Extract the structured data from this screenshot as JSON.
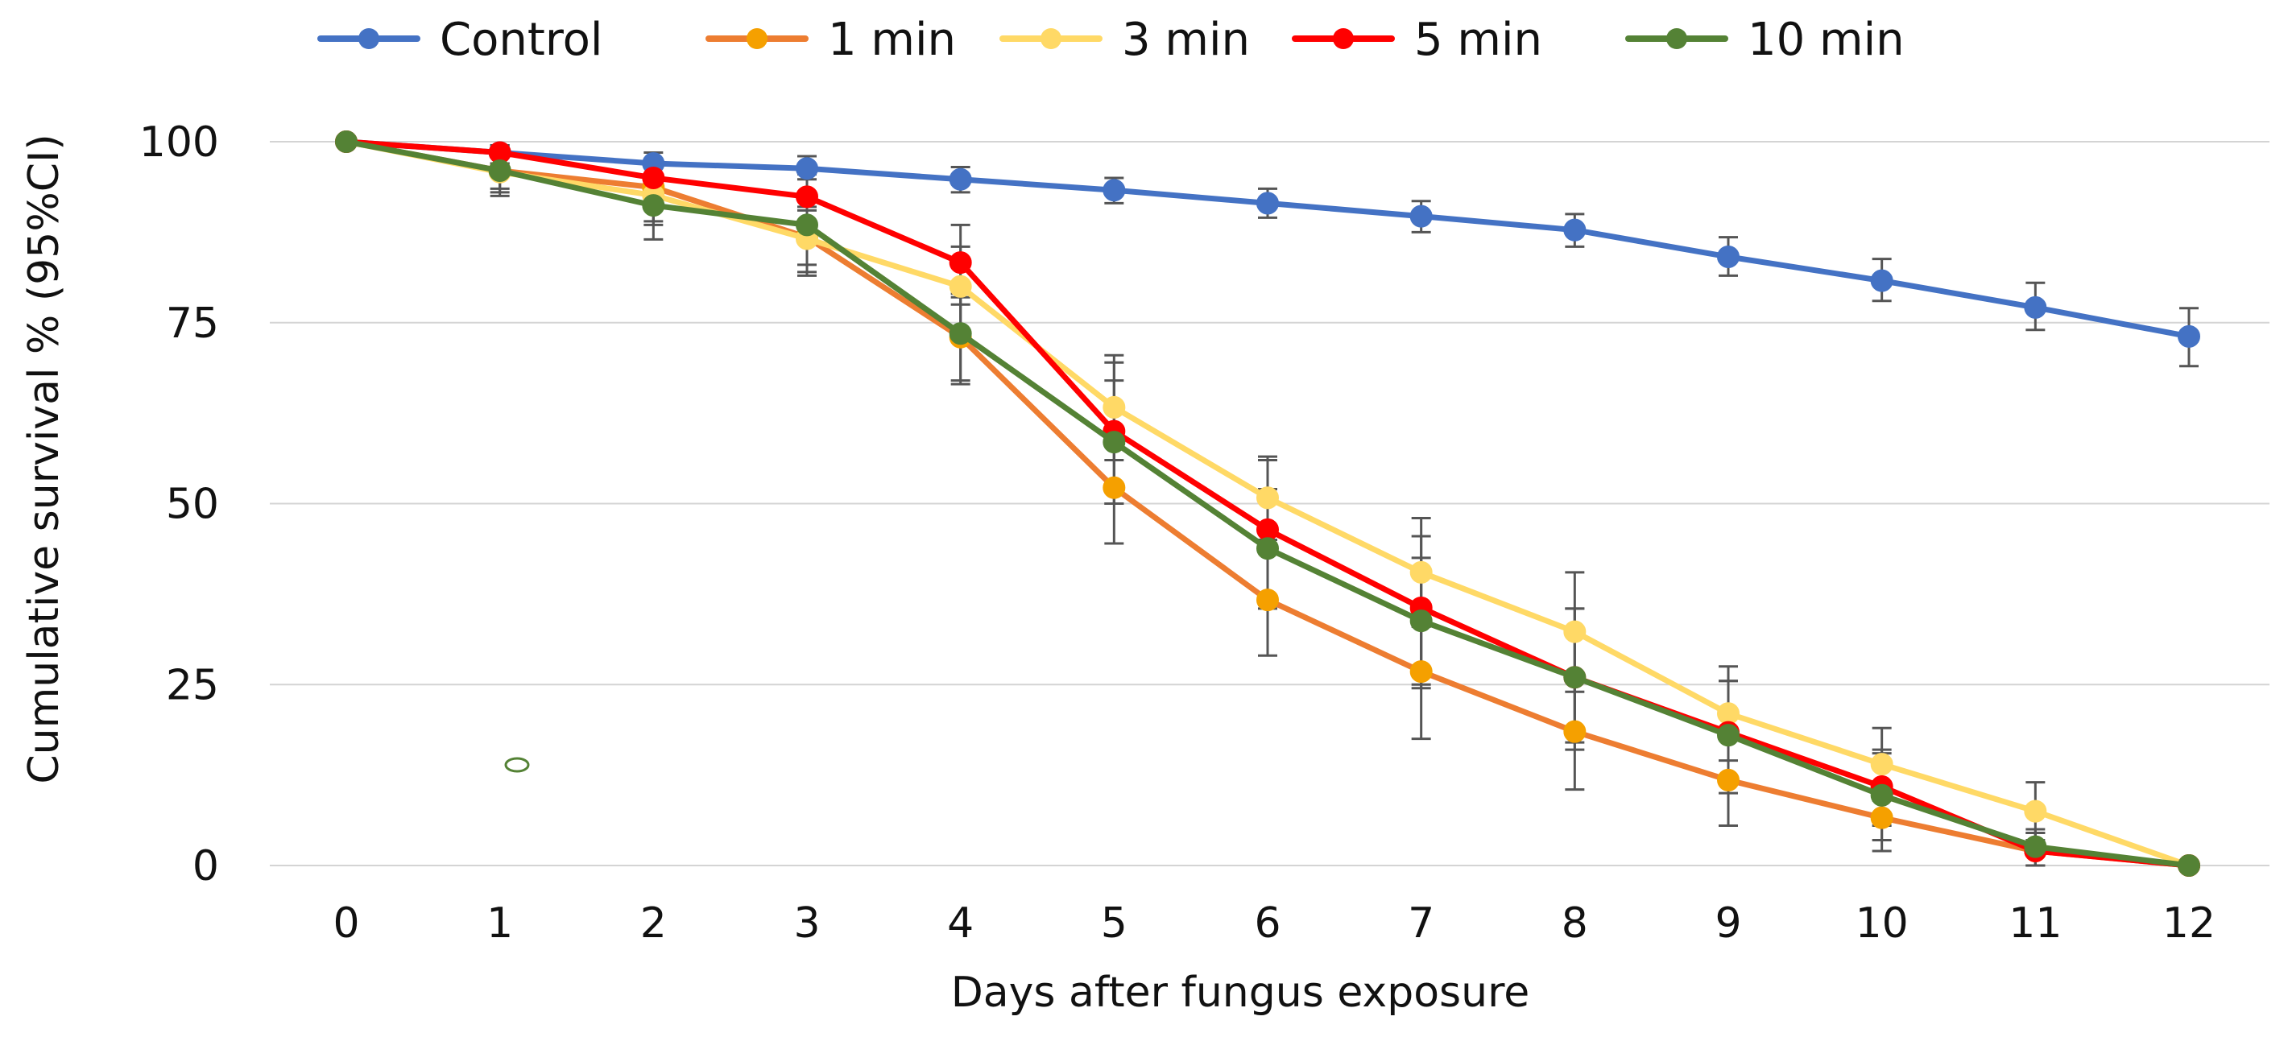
{
  "chart_data": {
    "type": "line",
    "title": "",
    "xlabel": "Days after fungus exposure",
    "ylabel": "Cumulative survival % (95%CI)",
    "x": [
      0,
      1,
      2,
      3,
      4,
      5,
      6,
      7,
      8,
      9,
      10,
      11,
      12
    ],
    "x_tick_labels": [
      "0",
      "1",
      "2",
      "3",
      "4",
      "5",
      "6",
      "7",
      "8",
      "9",
      "10",
      "11",
      "12"
    ],
    "y_ticks": [
      0,
      25,
      50,
      75,
      100
    ],
    "y_tick_labels": [
      "0",
      "25",
      "50",
      "75",
      "100"
    ],
    "ylim": [
      0,
      100
    ],
    "xlim": [
      0,
      12
    ],
    "grid": true,
    "legend_position": "top",
    "series": [
      {
        "name": "Control",
        "color": "#4472C4",
        "marker_color": "#4472C4",
        "values": [
          100,
          98.5,
          97,
          96.3,
          94.8,
          93.3,
          91.5,
          89.7,
          87.8,
          84.1,
          80.8,
          77.1,
          73.1
        ],
        "ci_low": [
          100,
          97,
          95.5,
          94.8,
          93,
          91.5,
          89.5,
          87.5,
          85.5,
          81.5,
          78,
          74,
          69
        ],
        "ci_high": [
          100,
          99.5,
          98.5,
          98,
          96.5,
          95,
          93.5,
          91.8,
          90,
          86.8,
          83.8,
          80.5,
          77
        ]
      },
      {
        "name": "1 min",
        "color": "#ED7D31",
        "marker_color": "#F5A000",
        "values": [
          100,
          96,
          93.7,
          86.8,
          73,
          52.2,
          36.7,
          26.8,
          18.5,
          11.8,
          6.6,
          2,
          0
        ],
        "ci_low": [
          100,
          93.5,
          89,
          81.5,
          66.5,
          44.5,
          29,
          17.5,
          10.5,
          5.5,
          2,
          0,
          0
        ],
        "ci_high": [
          100,
          98.5,
          96.5,
          91,
          79,
          60,
          44.5,
          36,
          26.5,
          18,
          11.5,
          4.5,
          0
        ]
      },
      {
        "name": "3 min",
        "color": "#FFD966",
        "marker_color": "#FFD966",
        "values": [
          100,
          95.8,
          92.6,
          86.6,
          80,
          63.3,
          50.8,
          40.5,
          32.3,
          21,
          14,
          7.5,
          0
        ],
        "ci_low": [
          100,
          93,
          88.5,
          82,
          74,
          56,
          45,
          33,
          24,
          14.5,
          9,
          3.5,
          0
        ],
        "ci_high": [
          100,
          98,
          95.5,
          90.5,
          85.5,
          70.5,
          56.5,
          48,
          40.5,
          27.5,
          19,
          11.5,
          0
        ]
      },
      {
        "name": "5 min",
        "color": "#FF0000",
        "marker_color": "#FF0000",
        "values": [
          100,
          98.5,
          95,
          92.4,
          83.3,
          60,
          46.4,
          35.6,
          26,
          18.4,
          10.9,
          2,
          0
        ],
        "ci_low": [
          100,
          97,
          92,
          88.5,
          77.5,
          50,
          36,
          24.5,
          17,
          12,
          5.5,
          0,
          0
        ],
        "ci_high": [
          100,
          99.5,
          97.5,
          95.5,
          88.5,
          69.5,
          56,
          45.5,
          35.5,
          25.5,
          16,
          4.5,
          0
        ]
      },
      {
        "name": "10 min",
        "color": "#548235",
        "marker_color": "#548235",
        "values": [
          100,
          96,
          91.2,
          88.5,
          73.5,
          58.5,
          43.8,
          33.8,
          26,
          18,
          9.7,
          2.6,
          0
        ],
        "ci_low": [
          100,
          92.5,
          86.5,
          83,
          67,
          50,
          35.5,
          25,
          16,
          10,
          3.5,
          0,
          0
        ],
        "ci_high": [
          100,
          98.5,
          95,
          92,
          78.5,
          67,
          52,
          42.5,
          35.5,
          25.5,
          15.5,
          5,
          0
        ]
      }
    ]
  }
}
